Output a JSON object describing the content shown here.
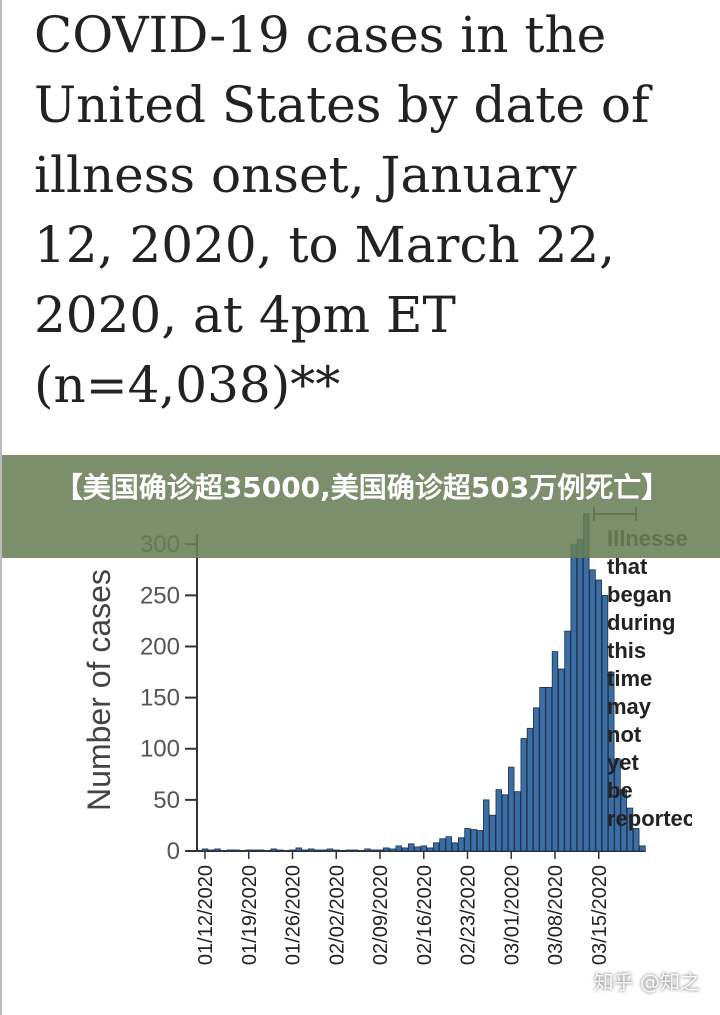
{
  "chart_data": {
    "type": "bar",
    "title": [
      "COVID-19 cases in the",
      "United States by date of",
      "illness onset, January",
      "12, 2020, to March 22,",
      "2020, at 4pm ET",
      "(n=4,038)**"
    ],
    "y_label": "Number of cases",
    "annotation": [
      "Illnesse",
      "that",
      "began",
      "during",
      "this",
      "time",
      "may",
      "not",
      "yet",
      "be",
      "reportec"
    ],
    "categories": [
      "01/12/2020",
      null,
      null,
      null,
      null,
      null,
      null,
      "01/19/2020",
      null,
      null,
      null,
      null,
      null,
      null,
      "01/26/2020",
      null,
      null,
      null,
      null,
      null,
      null,
      "02/02/2020",
      null,
      null,
      null,
      null,
      null,
      null,
      "02/09/2020",
      null,
      null,
      null,
      null,
      null,
      null,
      "02/16/2020",
      null,
      null,
      null,
      null,
      null,
      null,
      "02/23/2020",
      null,
      null,
      null,
      null,
      null,
      null,
      "03/01/2020",
      null,
      null,
      null,
      null,
      null,
      null,
      "03/08/2020",
      null,
      null,
      null,
      null,
      null,
      null,
      "03/15/2020",
      null,
      null,
      null,
      null,
      null,
      null,
      null
    ],
    "values": [
      2,
      1,
      2,
      0,
      1,
      1,
      0,
      1,
      1,
      1,
      0,
      2,
      1,
      0,
      1,
      3,
      1,
      2,
      1,
      1,
      2,
      1,
      0,
      1,
      1,
      0,
      2,
      1,
      1,
      3,
      2,
      5,
      3,
      7,
      4,
      5,
      3,
      8,
      12,
      14,
      8,
      13,
      22,
      21,
      20,
      50,
      35,
      60,
      55,
      82,
      58,
      110,
      120,
      140,
      160,
      160,
      195,
      178,
      215,
      300,
      305,
      330,
      275,
      265,
      250,
      175,
      90,
      60,
      42,
      22,
      5
    ],
    "color": "#3b6ea5",
    "ylim": [
      0,
      310
    ],
    "yticks": [
      0,
      50,
      100,
      150,
      200,
      250,
      300
    ]
  },
  "overlay": {
    "banner": "【美国确诊超35000,美国确诊超503万例死亡】",
    "watermark": "知乎 @知之"
  }
}
